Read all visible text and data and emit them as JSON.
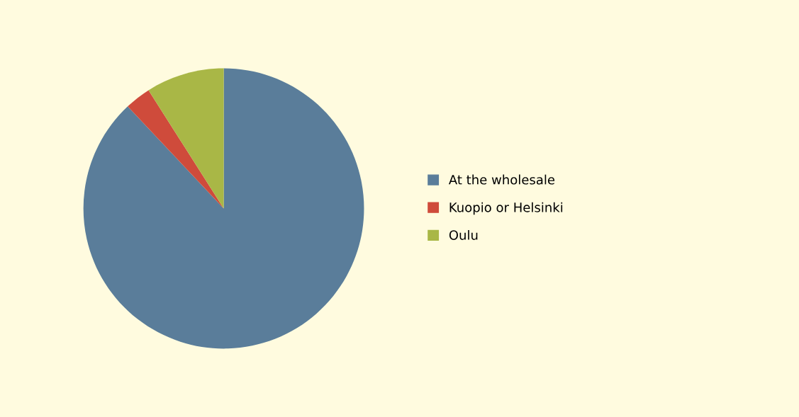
{
  "chart_data": {
    "type": "pie",
    "categories": [
      "At the wholesale",
      "Kuopio or Helsinki",
      "Oulu"
    ],
    "values": [
      88,
      3,
      9
    ],
    "colors": [
      "#5a7d9a",
      "#cf4b3b",
      "#a9b746"
    ],
    "legend": "right"
  }
}
